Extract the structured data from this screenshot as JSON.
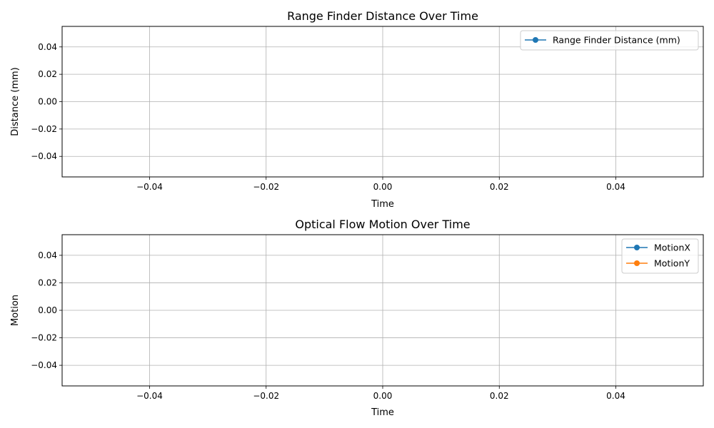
{
  "chart_data": [
    {
      "type": "line",
      "title": "Range Finder Distance Over Time",
      "xlabel": "Time",
      "ylabel": "Distance (mm)",
      "xlim": [
        -0.055,
        0.055
      ],
      "ylim": [
        -0.055,
        0.055
      ],
      "x_ticks": [
        -0.04,
        -0.02,
        0.0,
        0.02,
        0.04
      ],
      "x_tick_labels": [
        "−0.04",
        "−0.02",
        "0.00",
        "0.02",
        "0.04"
      ],
      "y_ticks": [
        -0.04,
        -0.02,
        0.0,
        0.02,
        0.04
      ],
      "y_tick_labels": [
        "−0.04",
        "−0.02",
        "0.00",
        "0.02",
        "0.04"
      ],
      "grid": true,
      "legend_position": "upper right",
      "x": [],
      "series": [
        {
          "name": "Range Finder Distance (mm)",
          "color": "#1f77b4",
          "marker": "circle",
          "values": []
        }
      ]
    },
    {
      "type": "line",
      "title": "Optical Flow Motion Over Time",
      "xlabel": "Time",
      "ylabel": "Motion",
      "xlim": [
        -0.055,
        0.055
      ],
      "ylim": [
        -0.055,
        0.055
      ],
      "x_ticks": [
        -0.04,
        -0.02,
        0.0,
        0.02,
        0.04
      ],
      "x_tick_labels": [
        "−0.04",
        "−0.02",
        "0.00",
        "0.02",
        "0.04"
      ],
      "y_ticks": [
        -0.04,
        -0.02,
        0.0,
        0.02,
        0.04
      ],
      "y_tick_labels": [
        "−0.04",
        "−0.02",
        "0.00",
        "0.02",
        "0.04"
      ],
      "grid": true,
      "legend_position": "upper right",
      "x": [],
      "series": [
        {
          "name": "MotionX",
          "color": "#1f77b4",
          "marker": "circle",
          "values": []
        },
        {
          "name": "MotionY",
          "color": "#ff7f0e",
          "marker": "circle",
          "values": []
        }
      ]
    }
  ]
}
